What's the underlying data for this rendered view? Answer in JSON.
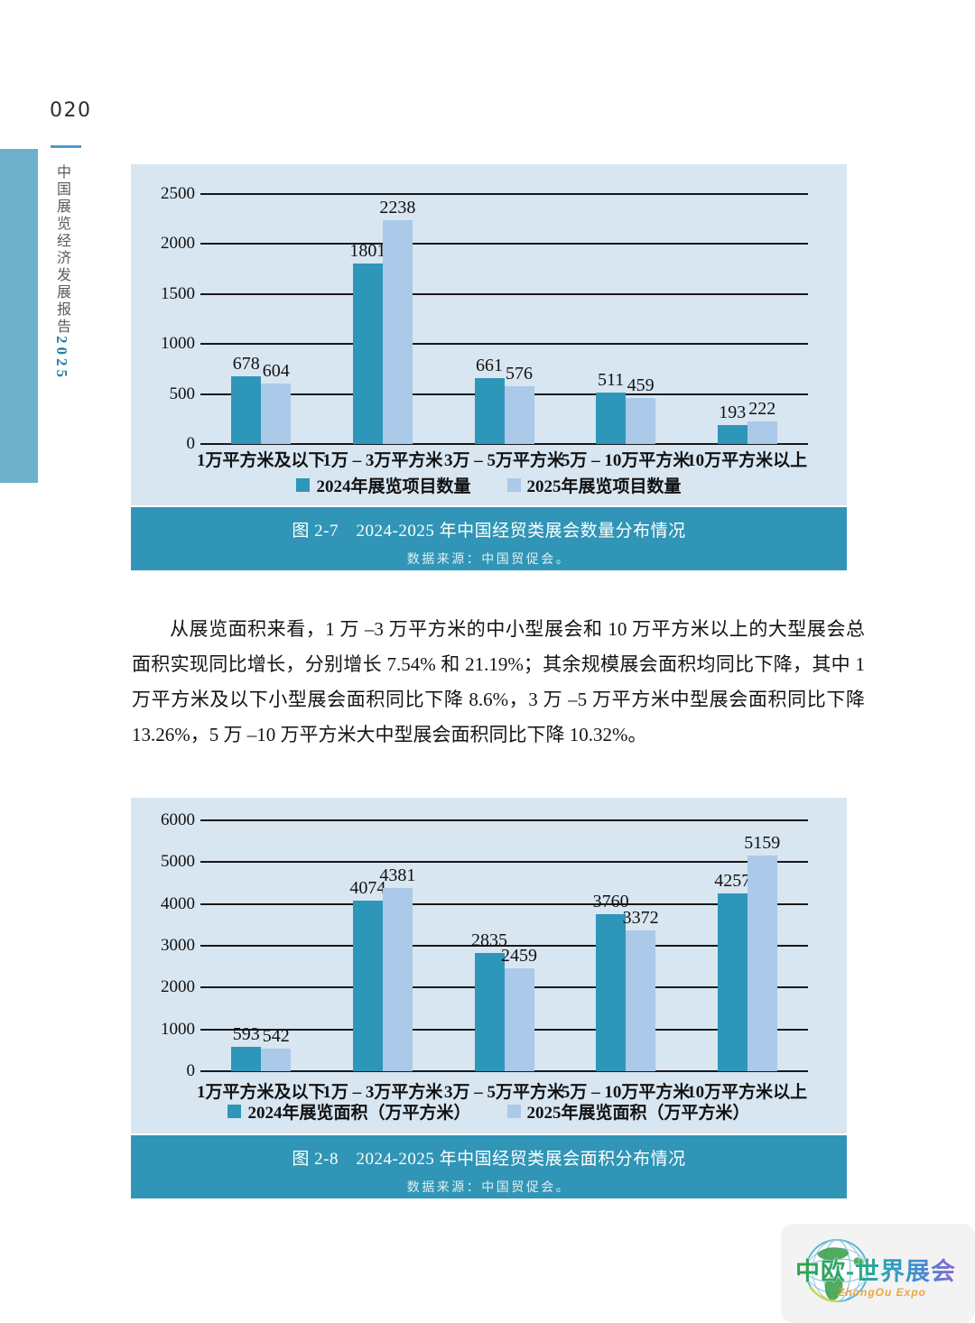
{
  "page": {
    "number": "020",
    "sidebar_title": "中国展览经济发展报告",
    "sidebar_year": "2025"
  },
  "paragraph": "从展览面积来看，1 万 –3 万平方米的中小型展会和 10 万平方米以上的大型展会总面积实现同比增长，分别增长 7.54% 和 21.19%；其余规模展会面积均同比下降，其中 1 万平方米及以下小型展会面积同比下降 8.6%，3 万 –5 万平方米中型展会面积同比下降 13.26%，5 万 –10 万平方米大中型展会面积同比下降 10.32%。",
  "colors": {
    "bar_2024": "#2e96b9",
    "bar_2025": "#abc9e8",
    "panel_background": "#d8e6f1",
    "caption_band": "#3095b6",
    "spine_bar": "#6db0c9",
    "spine_year": "#2580a8"
  },
  "chart_data": [
    {
      "type": "bar",
      "categories": [
        "1万平方米及以下",
        "1万 – 3万平方米",
        "3万 – 5万平方米",
        "5万 – 10万平方米",
        "10万平方米以上"
      ],
      "series": [
        {
          "name": "2024年展览项目数量",
          "color": "#2e96b9",
          "values": [
            678,
            1801,
            661,
            511,
            193
          ]
        },
        {
          "name": "2025年展览项目数量",
          "color": "#abc9e8",
          "values": [
            604,
            2238,
            576,
            459,
            222
          ]
        }
      ],
      "ylim": [
        0,
        2500
      ],
      "yticks": [
        0,
        500,
        1000,
        1500,
        2000,
        2500
      ],
      "grid": true,
      "legend_position": "bottom",
      "caption": "图 2-7　2024-2025 年中国经贸类展会数量分布情况",
      "source": "数据来源：中国贸促会。"
    },
    {
      "type": "bar",
      "categories": [
        "1万平方米及以下",
        "1万 – 3万平方米",
        "3万 – 5万平方米",
        "5万 – 10万平方米",
        "10万平方米以上"
      ],
      "series": [
        {
          "name": "2024年展览面积（万平方米）",
          "color": "#2e96b9",
          "values": [
            593,
            4074,
            2835,
            3760,
            4257
          ]
        },
        {
          "name": "2025年展览面积（万平方米）",
          "color": "#abc9e8",
          "values": [
            542,
            4381,
            2459,
            3372,
            5159
          ]
        }
      ],
      "ylim": [
        0,
        6000
      ],
      "yticks": [
        0,
        1000,
        2000,
        3000,
        4000,
        5000,
        6000
      ],
      "grid": true,
      "legend_position": "bottom",
      "caption": "图 2-8　2024-2025 年中国经贸类展会面积分布情况",
      "source": "数据来源：中国贸促会。"
    }
  ],
  "logo": {
    "title": "中欧-世界展会",
    "subtitle": "ZhongOu Expo"
  }
}
